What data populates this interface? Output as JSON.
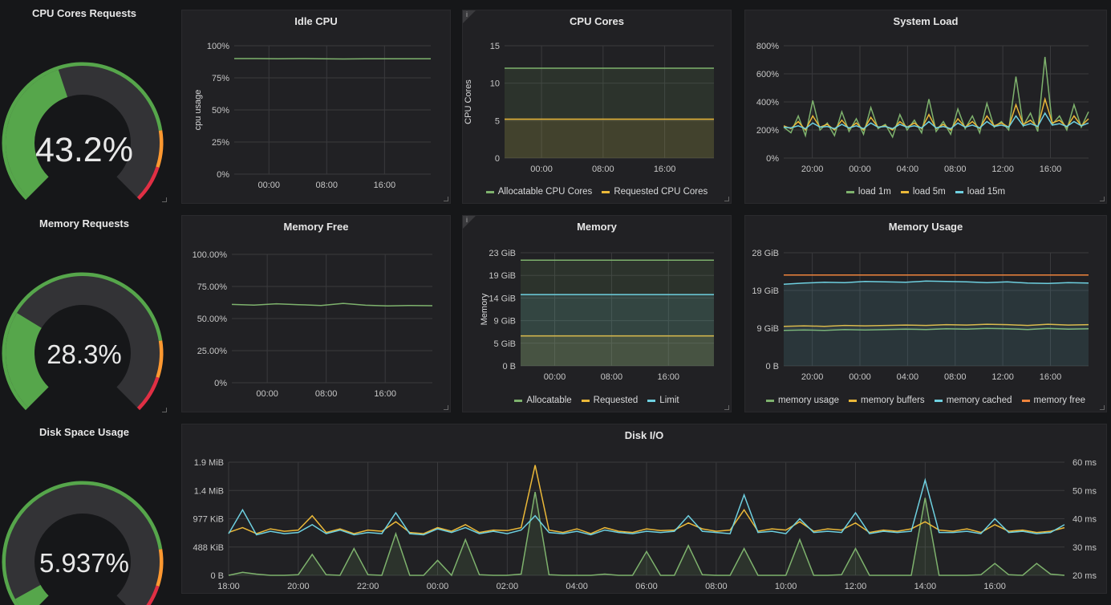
{
  "gauges": [
    {
      "title": "CPU Cores Requests",
      "value_text": "43.2%",
      "fraction": 0.432
    },
    {
      "title": "Memory Requests",
      "value_text": "28.3%",
      "fraction": 0.283
    },
    {
      "title": "Disk Space Usage",
      "value_text": "5.937%",
      "fraction": 0.05937
    }
  ],
  "colors": {
    "green": "#56a64b",
    "yellow": "#e0b400",
    "blue": "#8ab8ff",
    "cyan": "#73bfe6",
    "orange": "#ff9830",
    "red": "#e02f44",
    "gauge_bg": "#333336",
    "line_green": "#7eb26d",
    "line_yellow": "#eab839",
    "line_cyan": "#6ed0e0",
    "line_orange": "#ef843c"
  },
  "panels": {
    "idle_cpu": {
      "title": "Idle CPU"
    },
    "cpu_cores": {
      "title": "CPU Cores",
      "info": "i"
    },
    "system_load": {
      "title": "System Load"
    },
    "memory_free": {
      "title": "Memory Free"
    },
    "memory": {
      "title": "Memory",
      "info": "i"
    },
    "memory_usage": {
      "title": "Memory Usage"
    },
    "disk_io": {
      "title": "Disk I/O"
    }
  },
  "chart_data": [
    {
      "id": "idle_cpu",
      "type": "line",
      "title": "Idle CPU",
      "ylabel": "cpu usage",
      "yticks": [
        "0%",
        "25%",
        "50%",
        "75%",
        "100%"
      ],
      "ylim": [
        0,
        100
      ],
      "xticks": [
        "00:00",
        "08:00",
        "16:00"
      ],
      "series": [
        {
          "color": "line_green",
          "values": [
            90,
            90,
            89.8,
            90,
            89.9,
            89.7,
            89.8,
            89.9,
            89.8,
            89.9
          ]
        }
      ]
    },
    {
      "id": "cpu_cores",
      "type": "line",
      "title": "CPU Cores",
      "ylabel": "CPU Cores",
      "yticks": [
        "0",
        "5",
        "10",
        "15"
      ],
      "ylim": [
        0,
        15
      ],
      "xticks": [
        "00:00",
        "08:00",
        "16:00"
      ],
      "series": [
        {
          "name": "Allocatable CPU Cores",
          "color": "line_green",
          "values": [
            12,
            12,
            12,
            12,
            12,
            12,
            12,
            12,
            12,
            12
          ],
          "fill": true
        },
        {
          "name": "Requested CPU Cores",
          "color": "line_yellow",
          "values": [
            5.2,
            5.2,
            5.2,
            5.2,
            5.2,
            5.2,
            5.2,
            5.2,
            5.2,
            5.2
          ],
          "fill": true
        }
      ]
    },
    {
      "id": "system_load",
      "type": "line",
      "title": "System Load",
      "yticks": [
        "0%",
        "200%",
        "400%",
        "600%",
        "800%"
      ],
      "ylim": [
        0,
        800
      ],
      "xticks": [
        "20:00",
        "00:00",
        "04:00",
        "08:00",
        "12:00",
        "16:00"
      ],
      "series": [
        {
          "name": "load 1m",
          "color": "line_green",
          "values": [
            220,
            180,
            300,
            160,
            410,
            200,
            250,
            160,
            330,
            190,
            280,
            170,
            360,
            210,
            240,
            150,
            310,
            200,
            270,
            180,
            420,
            190,
            260,
            170,
            350,
            210,
            300,
            180,
            390,
            220,
            260,
            200,
            580,
            230,
            320,
            190,
            720,
            240,
            300,
            200,
            380,
            220,
            330
          ]
        },
        {
          "name": "load 5m",
          "color": "line_yellow",
          "values": [
            230,
            210,
            260,
            200,
            300,
            220,
            240,
            200,
            270,
            210,
            250,
            200,
            290,
            220,
            230,
            200,
            260,
            220,
            250,
            210,
            310,
            210,
            240,
            200,
            280,
            220,
            260,
            210,
            300,
            230,
            250,
            220,
            380,
            240,
            270,
            220,
            420,
            250,
            270,
            220,
            300,
            230,
            280
          ]
        },
        {
          "name": "load 15m",
          "color": "line_cyan",
          "values": [
            220,
            215,
            230,
            210,
            250,
            220,
            225,
            210,
            240,
            215,
            230,
            210,
            250,
            220,
            225,
            210,
            240,
            220,
            230,
            215,
            260,
            215,
            225,
            210,
            250,
            220,
            235,
            215,
            260,
            225,
            235,
            220,
            300,
            230,
            245,
            225,
            320,
            235,
            245,
            225,
            260,
            230,
            250
          ]
        }
      ]
    },
    {
      "id": "memory_free",
      "type": "line",
      "title": "Memory Free",
      "yticks": [
        "0%",
        "25.00%",
        "50.00%",
        "75.00%",
        "100.00%"
      ],
      "ylim": [
        0,
        100
      ],
      "xticks": [
        "00:00",
        "08:00",
        "16:00"
      ],
      "series": [
        {
          "color": "line_green",
          "values": [
            61,
            60.5,
            61.5,
            60.8,
            60.2,
            61.8,
            60.4,
            59.8,
            60.2,
            60
          ]
        }
      ]
    },
    {
      "id": "memory",
      "type": "line",
      "title": "Memory",
      "ylabel": "Memory",
      "yticks": [
        "0 B",
        "5 GiB",
        "9 GiB",
        "14 GiB",
        "19 GiB",
        "23 GiB"
      ],
      "ylim": [
        0,
        23
      ],
      "xticks": [
        "00:00",
        "08:00",
        "16:00"
      ],
      "series": [
        {
          "name": "Allocatable",
          "color": "line_green",
          "values": [
            21.5,
            21.5,
            21.5,
            21.5,
            21.5,
            21.5,
            21.5,
            21.5,
            21.5,
            21.5
          ],
          "fill": true
        },
        {
          "name": "Requested",
          "color": "line_yellow",
          "values": [
            6.1,
            6.1,
            6.1,
            6.1,
            6.1,
            6.1,
            6.1,
            6.1,
            6.1,
            6.1
          ],
          "fill": true
        },
        {
          "name": "Limit",
          "color": "line_cyan",
          "values": [
            14.5,
            14.5,
            14.5,
            14.5,
            14.5,
            14.5,
            14.5,
            14.5,
            14.5,
            14.5
          ],
          "fill": true
        }
      ]
    },
    {
      "id": "memory_usage",
      "type": "line",
      "title": "Memory Usage",
      "yticks": [
        "0 B",
        "9 GiB",
        "19 GiB",
        "28 GiB"
      ],
      "ylim": [
        0,
        28
      ],
      "xticks": [
        "20:00",
        "00:00",
        "04:00",
        "08:00",
        "12:00",
        "16:00"
      ],
      "series": [
        {
          "name": "memory usage",
          "color": "line_green",
          "values": [
            8.8,
            8.9,
            8.8,
            9.0,
            8.9,
            9.0,
            9.1,
            9.0,
            9.2,
            9.1,
            9.3,
            9.2,
            9.0,
            9.3,
            9.1,
            9.2
          ]
        },
        {
          "name": "memory buffers",
          "color": "line_yellow",
          "values": [
            9.8,
            9.9,
            9.8,
            10.0,
            9.9,
            10.0,
            10.1,
            10.0,
            10.2,
            10.1,
            10.3,
            10.2,
            10.0,
            10.3,
            10.1,
            10.2
          ]
        },
        {
          "name": "memory cached",
          "color": "line_cyan",
          "values": [
            20.2,
            20.5,
            20.7,
            20.6,
            20.9,
            20.8,
            20.7,
            21.0,
            20.9,
            20.8,
            20.6,
            20.8,
            20.5,
            20.4,
            20.6,
            20.5
          ],
          "fill": true
        },
        {
          "name": "memory free",
          "color": "line_orange",
          "values": [
            22.5,
            22.5,
            22.5,
            22.5,
            22.5,
            22.5,
            22.5,
            22.5,
            22.5,
            22.5,
            22.5,
            22.5,
            22.5,
            22.5,
            22.5,
            22.5
          ]
        }
      ]
    },
    {
      "id": "disk_io",
      "type": "line",
      "title": "Disk I/O",
      "yticks": [
        "0 B",
        "488 KiB",
        "977 KiB",
        "1.4 MiB",
        "1.9 MiB"
      ],
      "ylim": [
        0,
        1.9
      ],
      "y2ticks": [
        "20 ms",
        "30 ms",
        "40 ms",
        "50 ms",
        "60 ms"
      ],
      "xticks": [
        "18:00",
        "20:00",
        "22:00",
        "00:00",
        "02:00",
        "04:00",
        "06:00",
        "08:00",
        "10:00",
        "12:00",
        "14:00",
        "16:00"
      ],
      "series": [
        {
          "color": "line_green",
          "fill": true,
          "values": [
            0,
            0.05,
            0.02,
            0,
            0,
            0.01,
            0.35,
            0.01,
            0,
            0.45,
            0.01,
            0,
            0.7,
            0,
            0,
            0.25,
            0,
            0.6,
            0.01,
            0,
            0,
            0.02,
            1.4,
            0.01,
            0,
            0,
            0,
            0.02,
            0,
            0,
            0.4,
            0,
            0,
            0.5,
            0.01,
            0,
            0,
            0.45,
            0,
            0,
            0,
            0.6,
            0,
            0,
            0.01,
            0.45,
            0,
            0,
            0,
            0,
            1.3,
            0,
            0,
            0,
            0.01,
            0.2,
            0.01,
            0,
            0.2,
            0.02,
            0
          ]
        },
        {
          "color": "line_yellow",
          "values": [
            0.72,
            0.8,
            0.7,
            0.78,
            0.74,
            0.76,
            1.0,
            0.72,
            0.78,
            0.7,
            0.76,
            0.74,
            0.9,
            0.72,
            0.7,
            0.8,
            0.74,
            0.85,
            0.72,
            0.76,
            0.75,
            0.8,
            1.85,
            0.76,
            0.72,
            0.78,
            0.7,
            0.8,
            0.74,
            0.72,
            0.78,
            0.75,
            0.76,
            0.88,
            0.78,
            0.74,
            0.76,
            1.1,
            0.74,
            0.78,
            0.76,
            0.9,
            0.74,
            0.78,
            0.76,
            0.88,
            0.72,
            0.76,
            0.74,
            0.78,
            0.9,
            0.76,
            0.74,
            0.78,
            0.72,
            0.85,
            0.74,
            0.76,
            0.72,
            0.74,
            0.8
          ]
        },
        {
          "color": "line_cyan",
          "values": [
            0.7,
            1.1,
            0.68,
            0.74,
            0.7,
            0.72,
            0.85,
            0.7,
            0.76,
            0.68,
            0.72,
            0.7,
            1.05,
            0.7,
            0.68,
            0.78,
            0.72,
            0.8,
            0.7,
            0.74,
            0.7,
            0.76,
            1.0,
            0.72,
            0.7,
            0.74,
            0.68,
            0.76,
            0.72,
            0.7,
            0.74,
            0.72,
            0.74,
            1.0,
            0.74,
            0.72,
            0.7,
            1.35,
            0.72,
            0.74,
            0.7,
            0.95,
            0.72,
            0.74,
            0.72,
            1.05,
            0.7,
            0.74,
            0.72,
            0.74,
            1.6,
            0.72,
            0.72,
            0.74,
            0.7,
            0.95,
            0.72,
            0.74,
            0.7,
            0.72,
            0.85
          ]
        }
      ]
    }
  ]
}
